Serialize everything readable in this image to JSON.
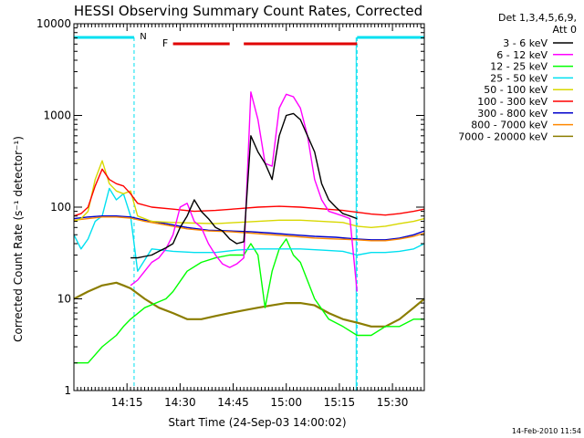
{
  "chart_data": {
    "type": "line",
    "title": "HESSI Observing Summary Count Rates, Corrected",
    "xlabel": "Start Time (24-Sep-03 14:00:02)",
    "ylabel": "Corrected Count Rate (s⁻¹ detector⁻¹)",
    "y_scale": "log",
    "ylim": [
      1,
      10000
    ],
    "xlim": [
      "14:00",
      "15:39"
    ],
    "x_ticks": [
      "14:15",
      "14:30",
      "14:45",
      "15:00",
      "15:15",
      "15:30"
    ],
    "y_ticks": [
      "1",
      "10",
      "100",
      "1000",
      "10000"
    ],
    "grid": false,
    "legend_position": "right",
    "legend_header": [
      "Det 1,3,4,5,6,9,",
      "Att 0"
    ],
    "footer_date": "14-Feb-2010 11:54",
    "annotations": {
      "night_marker": "N",
      "flare_marker": "F",
      "colors": {
        "night": "#00e0f0",
        "flare": "#e00000"
      },
      "night_intervals": [
        [
          "14:00",
          "14:17"
        ],
        [
          "15:20",
          "15:39"
        ]
      ],
      "flare_intervals": [
        [
          "14:28",
          "14:44"
        ],
        [
          "14:48",
          "15:20"
        ]
      ]
    },
    "series": [
      {
        "name": "3 - 6 keV",
        "color": "#000000",
        "x": [
          "14:16",
          "14:18",
          "14:20",
          "14:22",
          "14:24",
          "14:26",
          "14:28",
          "14:30",
          "14:32",
          "14:34",
          "14:36",
          "14:38",
          "14:40",
          "14:42",
          "14:44",
          "14:46",
          "14:48",
          "14:50",
          "14:52",
          "14:54",
          "14:56",
          "14:58",
          "15:00",
          "15:02",
          "15:04",
          "15:06",
          "15:08",
          "15:10",
          "15:12",
          "15:14",
          "15:16",
          "15:18",
          "15:20"
        ],
        "y": [
          28,
          28,
          29,
          30,
          33,
          36,
          40,
          60,
          80,
          120,
          90,
          75,
          60,
          55,
          45,
          40,
          42,
          600,
          400,
          300,
          200,
          600,
          1000,
          1050,
          900,
          600,
          400,
          180,
          120,
          100,
          85,
          80,
          75
        ]
      },
      {
        "name": "6 - 12 keV",
        "color": "#ff00ff",
        "x": [
          "14:16",
          "14:18",
          "14:20",
          "14:22",
          "14:24",
          "14:26",
          "14:28",
          "14:30",
          "14:32",
          "14:34",
          "14:36",
          "14:38",
          "14:40",
          "14:42",
          "14:44",
          "14:46",
          "14:48",
          "14:50",
          "14:52",
          "14:54",
          "14:56",
          "14:58",
          "15:00",
          "15:02",
          "15:04",
          "15:06",
          "15:08",
          "15:10",
          "15:12",
          "15:14",
          "15:16",
          "15:18",
          "15:20"
        ],
        "y": [
          14,
          16,
          20,
          25,
          28,
          35,
          50,
          100,
          110,
          70,
          60,
          40,
          30,
          24,
          22,
          24,
          28,
          1800,
          900,
          300,
          280,
          1200,
          1700,
          1600,
          1200,
          600,
          200,
          120,
          90,
          85,
          80,
          75,
          12
        ]
      },
      {
        "name": "12 - 25 keV",
        "color": "#00ff00",
        "x": [
          "14:00",
          "14:04",
          "14:08",
          "14:12",
          "14:14",
          "14:16",
          "14:20",
          "14:26",
          "14:28",
          "14:32",
          "14:36",
          "14:40",
          "14:44",
          "14:46",
          "14:48",
          "14:50",
          "14:52",
          "14:54",
          "14:56",
          "14:58",
          "15:00",
          "15:02",
          "15:04",
          "15:08",
          "15:12",
          "15:16",
          "15:20",
          "15:24",
          "15:28",
          "15:32",
          "15:36",
          "15:39"
        ],
        "y": [
          2,
          2,
          3,
          4,
          5,
          6,
          8,
          10,
          12,
          20,
          25,
          28,
          30,
          30,
          30,
          40,
          30,
          8,
          20,
          35,
          45,
          30,
          25,
          10,
          6,
          5,
          4,
          4,
          5,
          5,
          6,
          6
        ]
      },
      {
        "name": "25 - 50 keV",
        "color": "#00e0f0",
        "x": [
          "14:00",
          "14:02",
          "14:04",
          "14:06",
          "14:08",
          "14:10",
          "14:12",
          "14:14",
          "14:16",
          "14:18",
          "14:22",
          "14:28",
          "14:34",
          "14:40",
          "14:46",
          "14:52",
          "14:58",
          "15:04",
          "15:10",
          "15:16",
          "15:20",
          "15:24",
          "15:28",
          "15:32",
          "15:36",
          "15:39"
        ],
        "y": [
          50,
          35,
          45,
          70,
          80,
          160,
          120,
          140,
          80,
          20,
          35,
          33,
          32,
          32,
          34,
          35,
          35,
          35,
          34,
          33,
          30,
          32,
          32,
          33,
          35,
          40
        ]
      },
      {
        "name": "50 - 100 keV",
        "color": "#d8d800",
        "x": [
          "14:00",
          "14:02",
          "14:04",
          "14:06",
          "14:08",
          "14:10",
          "14:12",
          "14:14",
          "14:16",
          "14:18",
          "14:22",
          "14:28",
          "14:34",
          "14:40",
          "14:46",
          "14:52",
          "14:58",
          "15:04",
          "15:10",
          "15:16",
          "15:20",
          "15:24",
          "15:28",
          "15:32",
          "15:36",
          "15:39"
        ],
        "y": [
          70,
          75,
          90,
          200,
          320,
          180,
          150,
          140,
          150,
          80,
          70,
          68,
          67,
          66,
          68,
          70,
          72,
          72,
          70,
          68,
          62,
          60,
          62,
          66,
          70,
          75
        ]
      },
      {
        "name": "100 - 300 keV",
        "color": "#ff0000",
        "x": [
          "14:00",
          "14:02",
          "14:04",
          "14:06",
          "14:08",
          "14:10",
          "14:12",
          "14:14",
          "14:16",
          "14:18",
          "14:22",
          "14:28",
          "14:34",
          "14:40",
          "14:46",
          "14:52",
          "14:58",
          "15:04",
          "15:10",
          "15:16",
          "15:20",
          "15:24",
          "15:28",
          "15:32",
          "15:36",
          "15:39"
        ],
        "y": [
          80,
          85,
          100,
          170,
          260,
          200,
          180,
          170,
          140,
          110,
          100,
          95,
          90,
          92,
          96,
          100,
          102,
          100,
          96,
          92,
          88,
          84,
          82,
          85,
          90,
          95
        ]
      },
      {
        "name": "300 - 800 keV",
        "color": "#0000cc",
        "x": [
          "14:00",
          "14:04",
          "14:08",
          "14:12",
          "14:16",
          "14:20",
          "14:26",
          "14:32",
          "14:38",
          "14:44",
          "14:50",
          "14:56",
          "15:02",
          "15:08",
          "15:14",
          "15:20",
          "15:24",
          "15:28",
          "15:32",
          "15:36",
          "15:39"
        ],
        "y": [
          75,
          78,
          80,
          80,
          78,
          72,
          66,
          60,
          56,
          55,
          54,
          52,
          50,
          48,
          47,
          45,
          44,
          44,
          46,
          50,
          55
        ]
      },
      {
        "name": "800 - 7000 keV",
        "color": "#ff8800",
        "x": [
          "14:00",
          "14:04",
          "14:08",
          "14:12",
          "14:16",
          "14:20",
          "14:26",
          "14:32",
          "14:38",
          "14:44",
          "14:50",
          "14:56",
          "15:02",
          "15:08",
          "15:14",
          "15:20",
          "15:24",
          "15:28",
          "15:32",
          "15:36",
          "15:39"
        ],
        "y": [
          72,
          75,
          78,
          78,
          76,
          70,
          64,
          58,
          55,
          54,
          52,
          50,
          48,
          46,
          45,
          44,
          43,
          43,
          45,
          48,
          52
        ]
      },
      {
        "name": "7000 - 20000 keV",
        "color": "#8b7d00",
        "x": [
          "14:00",
          "14:04",
          "14:08",
          "14:12",
          "14:14",
          "14:16",
          "14:20",
          "14:24",
          "14:28",
          "14:32",
          "14:36",
          "14:40",
          "14:44",
          "14:48",
          "14:52",
          "14:56",
          "15:00",
          "15:04",
          "15:08",
          "15:12",
          "15:16",
          "15:20",
          "15:24",
          "15:28",
          "15:32",
          "15:36",
          "15:39"
        ],
        "y": [
          10,
          12,
          14,
          15,
          14,
          13,
          10,
          8,
          7,
          6,
          6,
          6.5,
          7,
          7.5,
          8,
          8.5,
          9,
          9,
          8.5,
          7,
          6,
          5.5,
          5,
          5,
          6,
          8,
          10
        ]
      }
    ]
  }
}
